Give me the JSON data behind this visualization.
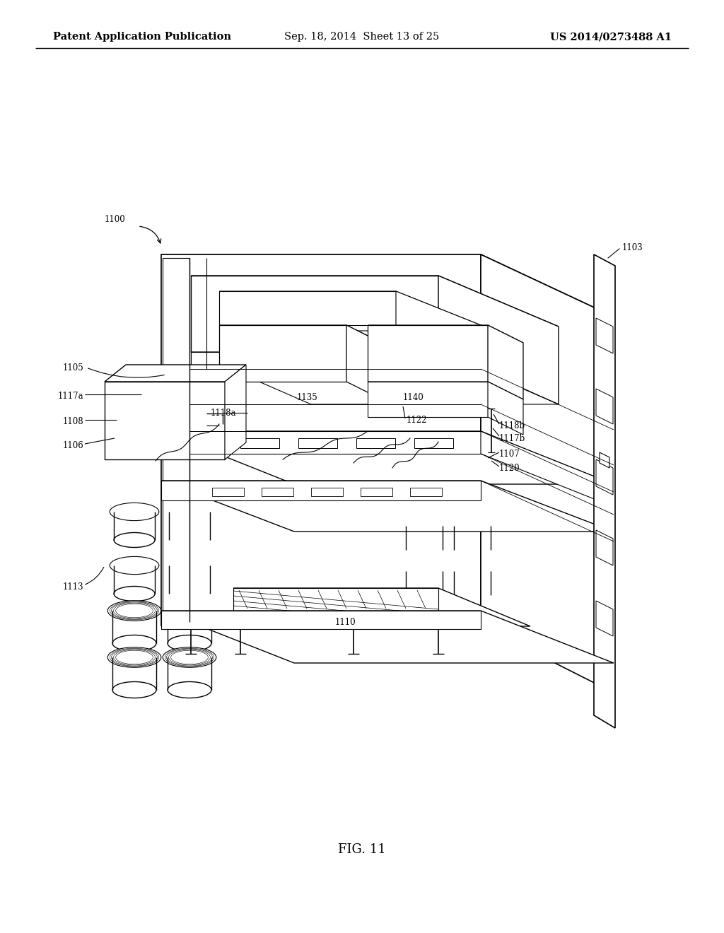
{
  "background_color": "#ffffff",
  "header_left": "Patent Application Publication",
  "header_center": "Sep. 18, 2014  Sheet 13 of 25",
  "header_right": "US 2014/0273488 A1",
  "figure_label": "FIG. 11",
  "header_fontsize": 10.5,
  "figure_label_fontsize": 13,
  "line_color": "#000000",
  "text_color": "#000000",
  "label_fontsize": 8.5
}
